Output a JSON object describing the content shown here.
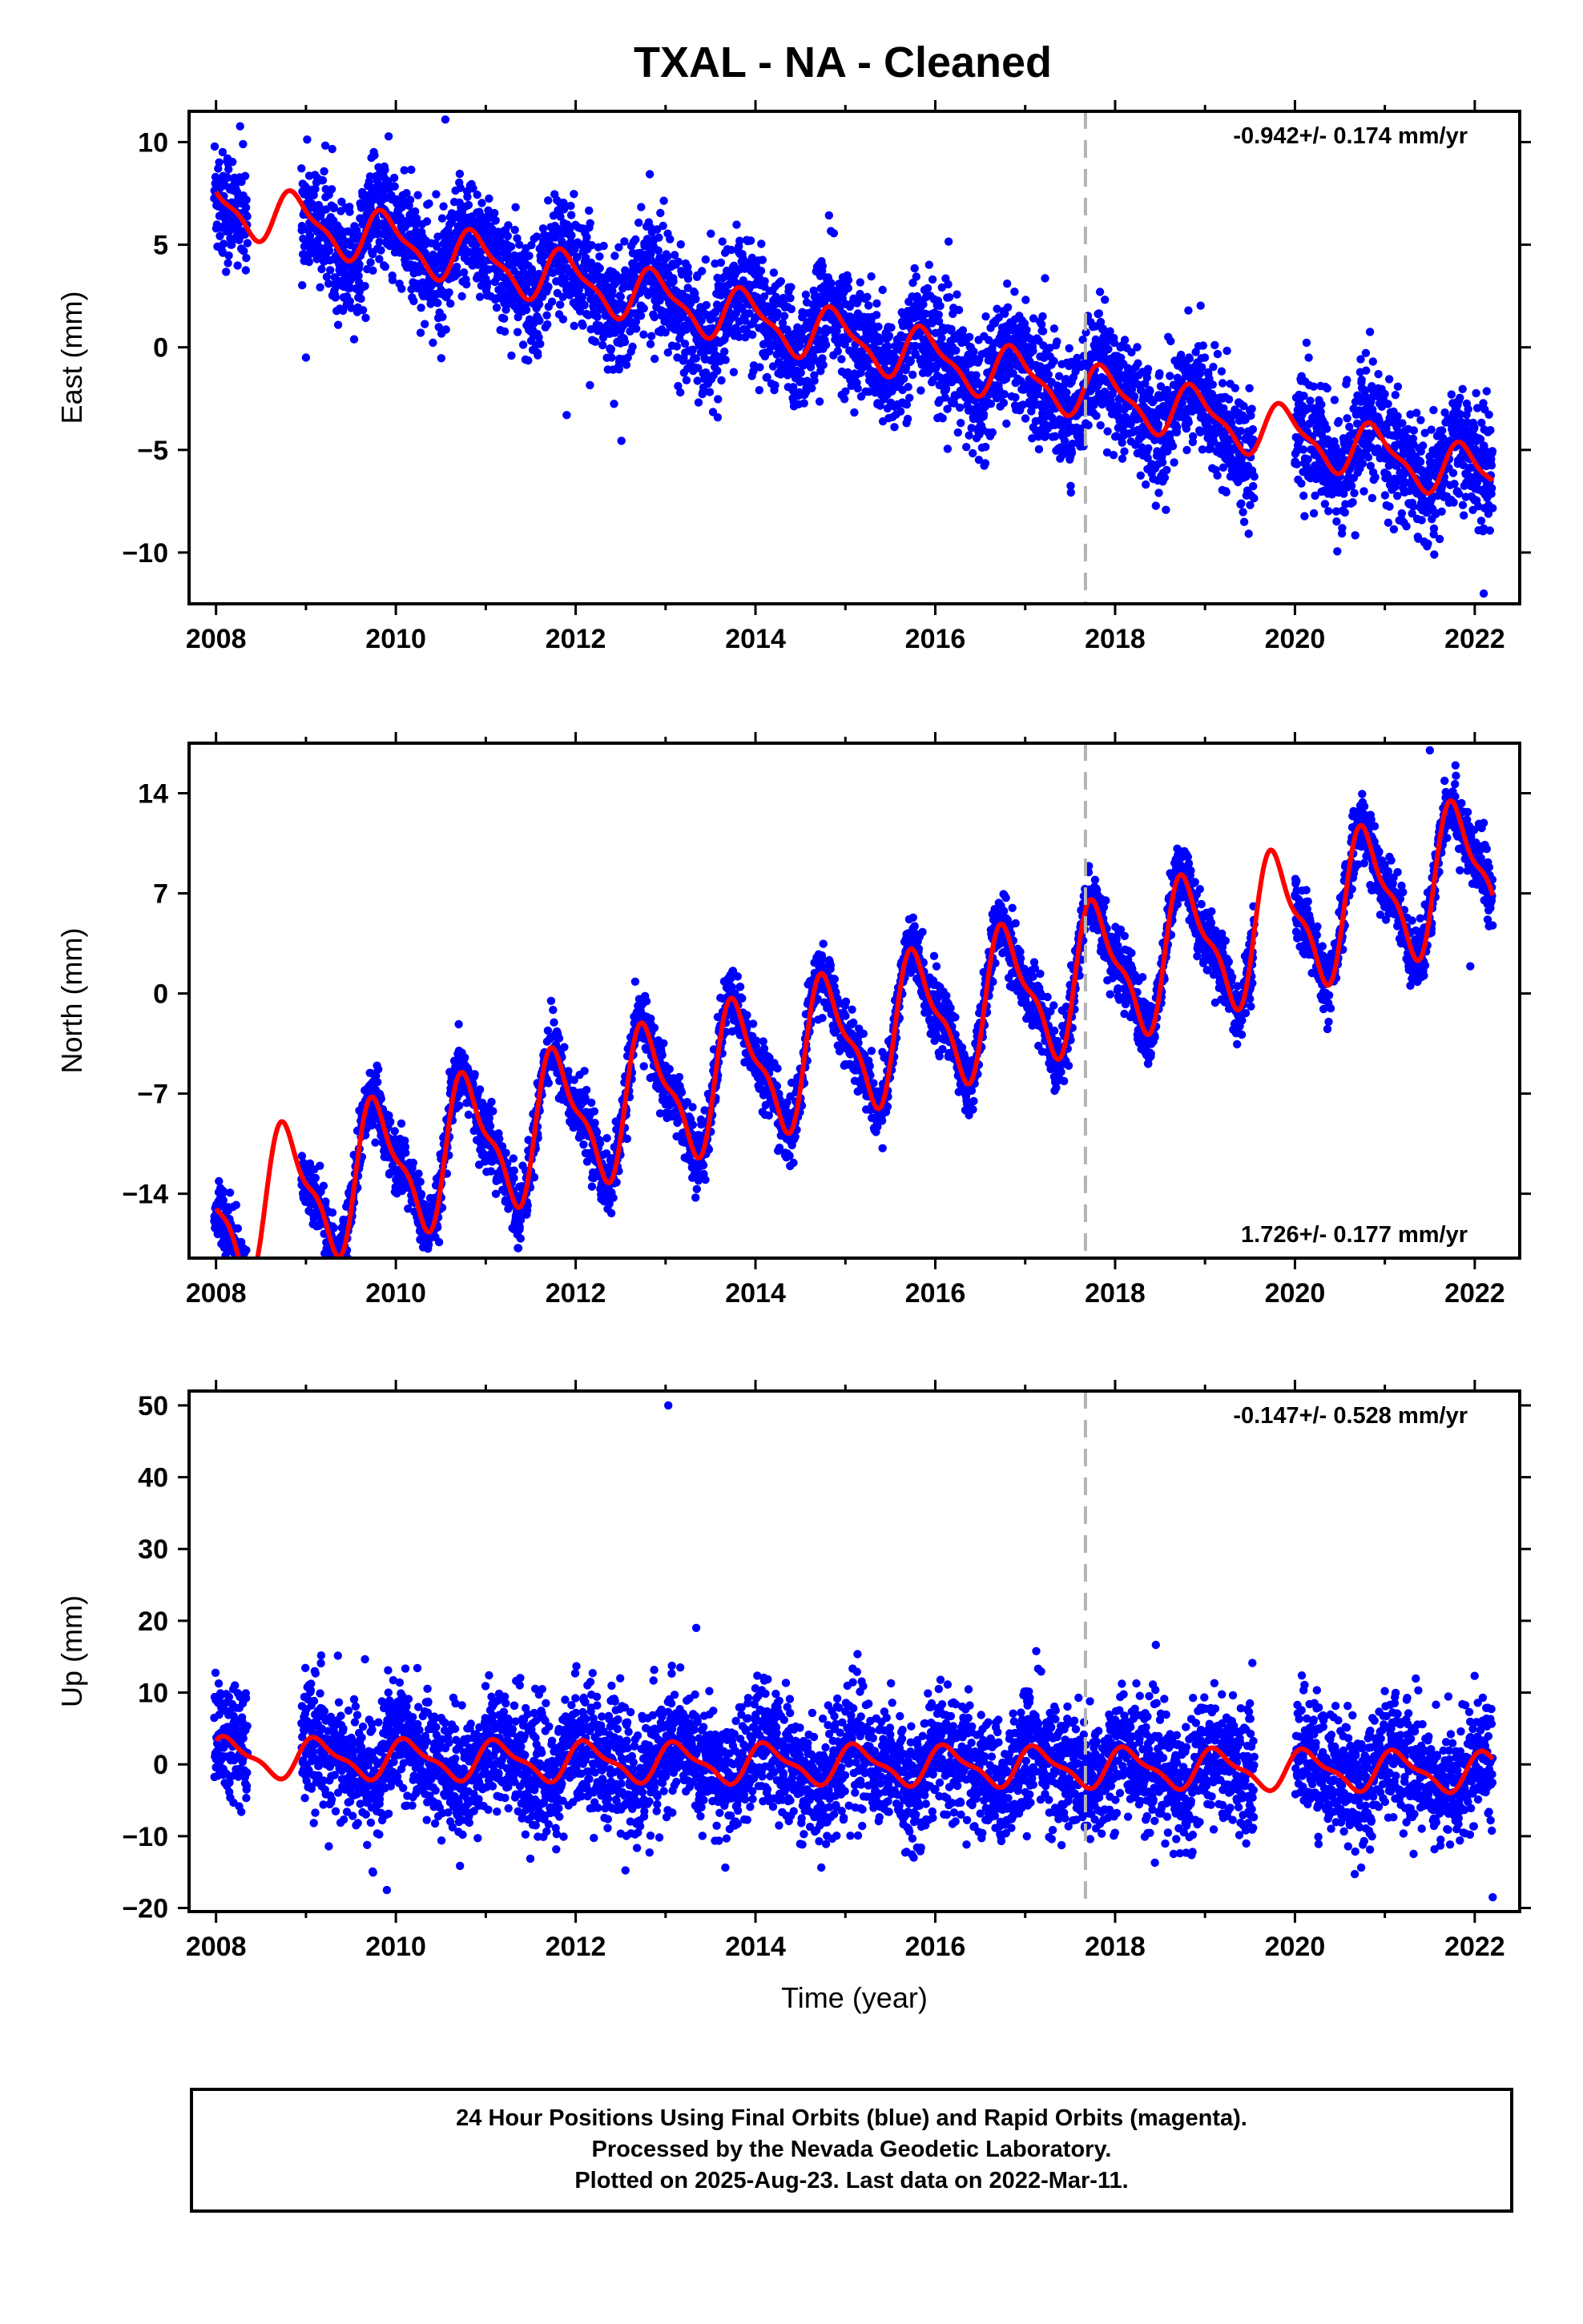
{
  "title": "TXAL  - NA - Cleaned",
  "footer": {
    "line1": "24 Hour Positions Using Final Orbits (blue) and Rapid Orbits (magenta).",
    "line2": "Processed by the Nevada Geodetic Laboratory.",
    "line3": "Plotted on 2025-Aug-23. Last data on 2022-Mar-11."
  },
  "colors": {
    "points": "#0000ff",
    "model": "#ff0000",
    "event_line": "#b4b4b4",
    "frame": "#000000"
  },
  "chart_data": [
    {
      "type": "scatter",
      "component": "east",
      "ylabel": "East (mm)",
      "xlabel": "",
      "xlim": [
        2007.7,
        2022.5
      ],
      "ylim": [
        -12.5,
        11.5
      ],
      "xticks": [
        2008,
        2010,
        2012,
        2014,
        2016,
        2018,
        2020,
        2022
      ],
      "yticks": [
        -10,
        -5,
        0,
        5,
        10
      ],
      "rate_text": "-0.942+/- 0.174 mm/yr",
      "rate_position": "top-right",
      "event_line_x": 2017.67,
      "data_segments": [
        [
          2007.98,
          2008.35
        ],
        [
          2008.95,
          2019.55
        ],
        [
          2020.0,
          2022.2
        ]
      ],
      "model": {
        "offset": 7.0,
        "rate": -0.942,
        "amplitude": 1.2,
        "phase_year": 0.65,
        "x_start": 2008.0,
        "x_end": 2022.2,
        "noise": 1.4
      },
      "outliers": [
        {
          "x": 2010.55,
          "y": 11.1
        },
        {
          "x": 2011.9,
          "y": -3.3
        },
        {
          "x": 2009.0,
          "y": -0.5
        },
        {
          "x": 2022.1,
          "y": -12.0
        }
      ]
    },
    {
      "type": "scatter",
      "component": "north",
      "ylabel": "North (mm)",
      "xlabel": "",
      "xlim": [
        2007.7,
        2022.5
      ],
      "ylim": [
        -18.5,
        17.5
      ],
      "xticks": [
        2008,
        2010,
        2012,
        2014,
        2016,
        2018,
        2020,
        2022
      ],
      "yticks": [
        -14,
        -7,
        0,
        7,
        14
      ],
      "rate_text": "1.726+/- 0.177 mm/yr",
      "rate_position": "bottom-right",
      "event_line_x": 2017.67,
      "data_segments": [
        [
          2007.98,
          2008.35
        ],
        [
          2008.95,
          2019.55
        ],
        [
          2020.0,
          2022.2
        ]
      ],
      "model": {
        "offset": -15.5,
        "rate": 1.726,
        "amplitude": 4.5,
        "phase_year": 0.55,
        "x_start": 2008.0,
        "x_end": 2022.2,
        "noise": 1.1
      },
      "outliers": [
        {
          "x": 2021.95,
          "y": 1.9
        },
        {
          "x": 2021.5,
          "y": 17.0
        }
      ]
    },
    {
      "type": "scatter",
      "component": "up",
      "ylabel": "Up (mm)",
      "xlabel": "Time (year)",
      "xlim": [
        2007.7,
        2022.5
      ],
      "ylim": [
        -20.5,
        52
      ],
      "xticks": [
        2008,
        2010,
        2012,
        2014,
        2016,
        2018,
        2020,
        2022
      ],
      "yticks": [
        -20,
        -10,
        0,
        10,
        20,
        30,
        40,
        50
      ],
      "rate_text": "-0.147+/- 0.528 mm/yr",
      "rate_position": "top-right",
      "event_line_x": 2017.67,
      "data_segments": [
        [
          2007.98,
          2008.35
        ],
        [
          2008.95,
          2019.55
        ],
        [
          2020.0,
          2022.2
        ]
      ],
      "model": {
        "offset": 1.0,
        "rate": -0.147,
        "amplitude": 2.5,
        "phase_year": 0.9,
        "x_start": 2008.0,
        "x_end": 2022.2,
        "noise": 4.2
      },
      "outliers": [
        {
          "x": 2013.03,
          "y": 50.0
        },
        {
          "x": 2022.2,
          "y": -18.5
        },
        {
          "x": 2009.9,
          "y": -17.5
        }
      ]
    }
  ]
}
